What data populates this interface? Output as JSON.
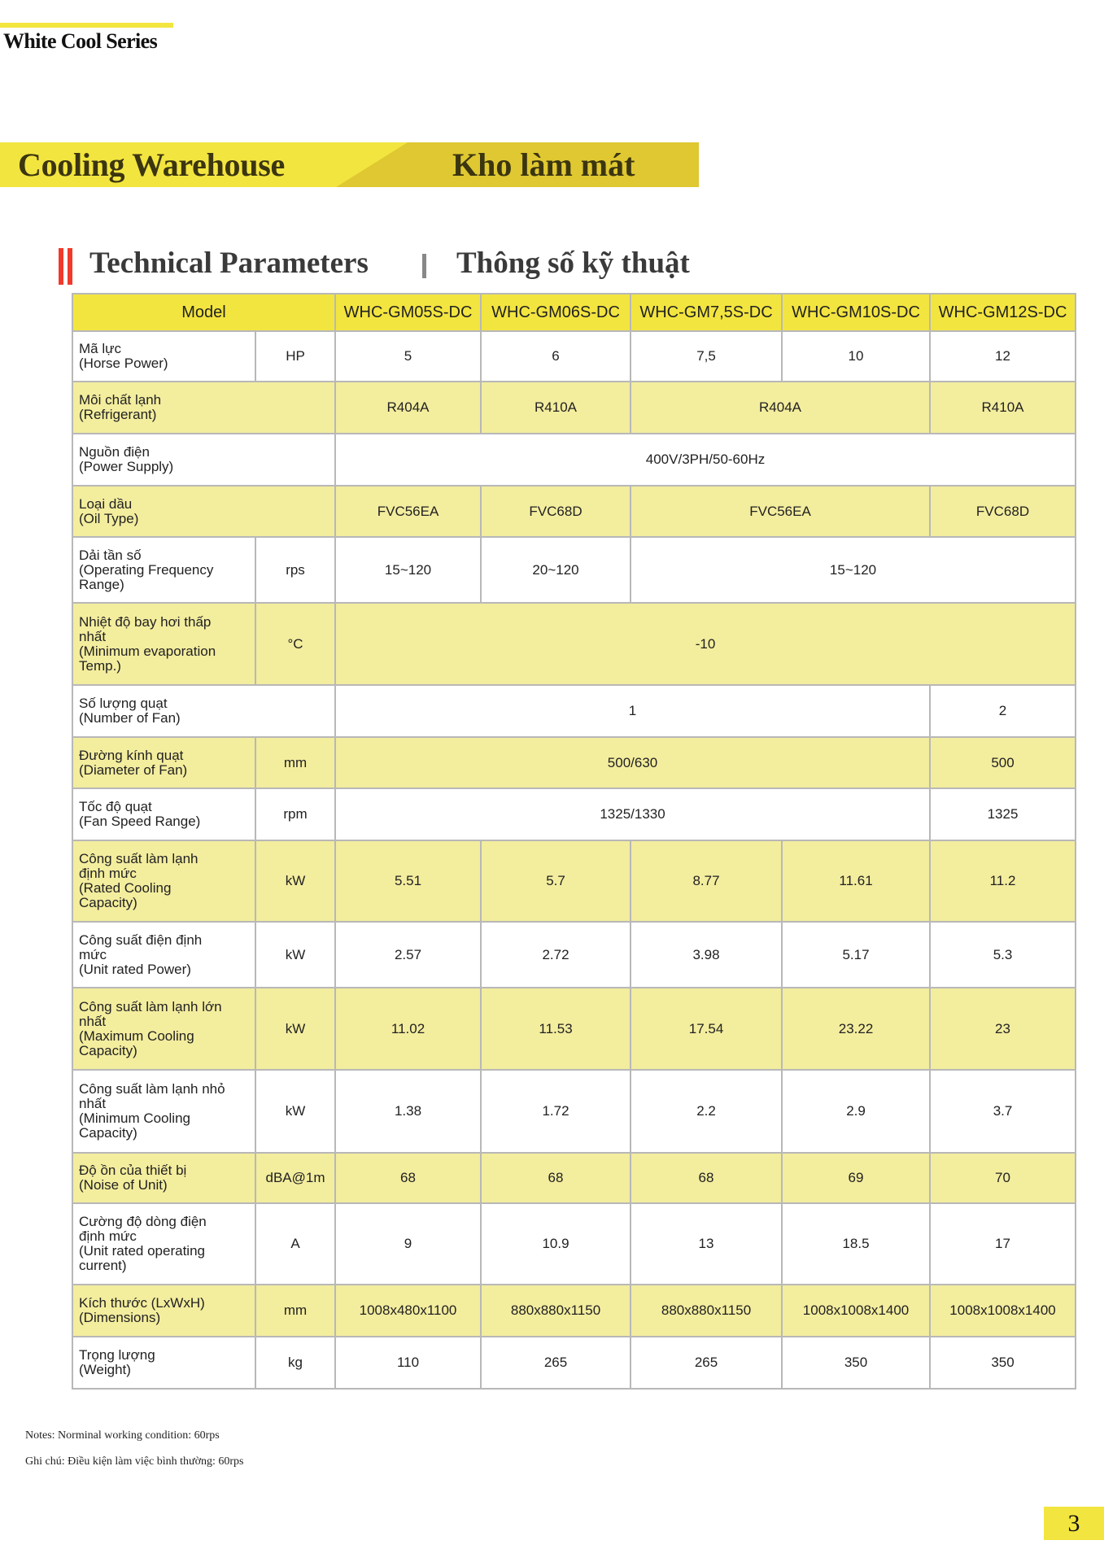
{
  "header": {
    "series": "White Cool Series"
  },
  "banner": {
    "title_en": "Cooling Warehouse",
    "title_vi": "Kho làm mát"
  },
  "section": {
    "title_en": "Technical Parameters",
    "title_vi": "Thông số kỹ thuật"
  },
  "colors": {
    "yellow": "#f3e53f",
    "band": "#f3ed9e",
    "dark_yellow": "#dfc831",
    "red": "#f03a2c"
  },
  "table": {
    "model_label": "Model",
    "models": [
      "WHC-GM05S-DC",
      "WHC-GM06S-DC",
      "WHC-GM7,5S-DC",
      "WHC-GM10S-DC",
      "WHC-GM12S-DC"
    ],
    "rows": [
      {
        "label": "Mã lực\n(Horse Power)",
        "unit": "HP",
        "cells": [
          {
            "v": "5",
            "span": 1
          },
          {
            "v": "6",
            "span": 1
          },
          {
            "v": "7,5",
            "span": 1
          },
          {
            "v": "10",
            "span": 1
          },
          {
            "v": "12",
            "span": 1
          }
        ]
      },
      {
        "label": "Môi chất lạnh\n(Refrigerant)",
        "unit": null,
        "cells": [
          {
            "v": "R404A",
            "span": 1
          },
          {
            "v": "R410A",
            "span": 1
          },
          {
            "v": "R404A",
            "span": 2
          },
          {
            "v": "R410A",
            "span": 1
          }
        ]
      },
      {
        "label": "Nguồn điện\n(Power Supply)",
        "unit": null,
        "cells": [
          {
            "v": "400V/3PH/50-60Hz",
            "span": 5
          }
        ]
      },
      {
        "label": "Loại dầu\n(Oil Type)",
        "unit": null,
        "cells": [
          {
            "v": "FVC56EA",
            "span": 1
          },
          {
            "v": "FVC68D",
            "span": 1
          },
          {
            "v": "FVC56EA",
            "span": 2
          },
          {
            "v": "FVC68D",
            "span": 1
          }
        ]
      },
      {
        "label": "Dải tần số\n(Operating Frequency\nRange)",
        "unit": "rps",
        "cells": [
          {
            "v": "15~120",
            "span": 1
          },
          {
            "v": "20~120",
            "span": 1
          },
          {
            "v": "15~120",
            "span": 3
          }
        ]
      },
      {
        "label": "Nhiệt độ bay hơi thấp\nnhất\n(Minimum evaporation\nTemp.)",
        "unit": "°C",
        "cells": [
          {
            "v": "-10",
            "span": 5
          }
        ]
      },
      {
        "label": "Số lượng quạt\n(Number of Fan)",
        "unit": null,
        "cells": [
          {
            "v": "1",
            "span": 4
          },
          {
            "v": "2",
            "span": 1
          }
        ]
      },
      {
        "label": "Đường kính quạt\n(Diameter of Fan)",
        "unit": "mm",
        "cells": [
          {
            "v": "500/630",
            "span": 4
          },
          {
            "v": "500",
            "span": 1
          }
        ]
      },
      {
        "label": "Tốc độ quạt\n(Fan Speed Range)",
        "unit": "rpm",
        "cells": [
          {
            "v": "1325/1330",
            "span": 4
          },
          {
            "v": "1325",
            "span": 1
          }
        ]
      },
      {
        "label": "Công suất làm lạnh\nđịnh mức\n(Rated Cooling\nCapacity)",
        "unit": "kW",
        "cells": [
          {
            "v": "5.51",
            "span": 1
          },
          {
            "v": "5.7",
            "span": 1
          },
          {
            "v": "8.77",
            "span": 1
          },
          {
            "v": "11.61",
            "span": 1
          },
          {
            "v": "11.2",
            "span": 1
          }
        ]
      },
      {
        "label": "Công suất điện định\nmức\n(Unit rated Power)",
        "unit": "kW",
        "cells": [
          {
            "v": "2.57",
            "span": 1
          },
          {
            "v": "2.72",
            "span": 1
          },
          {
            "v": "3.98",
            "span": 1
          },
          {
            "v": "5.17",
            "span": 1
          },
          {
            "v": "5.3",
            "span": 1
          }
        ]
      },
      {
        "label": "Công suất làm lạnh lớn\nnhất\n(Maximum Cooling\nCapacity)",
        "unit": "kW",
        "cells": [
          {
            "v": "11.02",
            "span": 1
          },
          {
            "v": "11.53",
            "span": 1
          },
          {
            "v": "17.54",
            "span": 1
          },
          {
            "v": "23.22",
            "span": 1
          },
          {
            "v": "23",
            "span": 1
          }
        ]
      },
      {
        "label": "Công suất làm lạnh nhỏ\nnhất\n(Minimum Cooling\nCapacity)",
        "unit": "kW",
        "cells": [
          {
            "v": "1.38",
            "span": 1
          },
          {
            "v": "1.72",
            "span": 1
          },
          {
            "v": "2.2",
            "span": 1
          },
          {
            "v": "2.9",
            "span": 1
          },
          {
            "v": "3.7",
            "span": 1
          }
        ]
      },
      {
        "label": "Độ ồn của thiết bị\n(Noise of Unit)",
        "unit": "dBA@1m",
        "cells": [
          {
            "v": "68",
            "span": 1
          },
          {
            "v": "68",
            "span": 1
          },
          {
            "v": "68",
            "span": 1
          },
          {
            "v": "69",
            "span": 1
          },
          {
            "v": "70",
            "span": 1
          }
        ]
      },
      {
        "label": "Cường độ dòng điện\nđịnh mức\n(Unit rated operating\ncurrent)",
        "unit": "A",
        "cells": [
          {
            "v": "9",
            "span": 1
          },
          {
            "v": "10.9",
            "span": 1
          },
          {
            "v": "13",
            "span": 1
          },
          {
            "v": "18.5",
            "span": 1
          },
          {
            "v": "17",
            "span": 1
          }
        ]
      },
      {
        "label": "Kích thước (LxWxH)\n(Dimensions)",
        "unit": "mm",
        "cells": [
          {
            "v": "1008x480x1100",
            "span": 1
          },
          {
            "v": "880x880x1150",
            "span": 1
          },
          {
            "v": "880x880x1150",
            "span": 1
          },
          {
            "v": "1008x1008x1400",
            "span": 1
          },
          {
            "v": "1008x1008x1400",
            "span": 1
          }
        ]
      },
      {
        "label": "Trọng lượng\n(Weight)",
        "unit": "kg",
        "cells": [
          {
            "v": "110",
            "span": 1
          },
          {
            "v": "265",
            "span": 1
          },
          {
            "v": "265",
            "span": 1
          },
          {
            "v": "350",
            "span": 1
          },
          {
            "v": "350",
            "span": 1
          }
        ]
      }
    ]
  },
  "notes": {
    "en": "Notes: Norminal working condition: 60rps",
    "vi": "Ghi chú: Điều kiện làm việc bình thường: 60rps"
  },
  "page_number": "3"
}
